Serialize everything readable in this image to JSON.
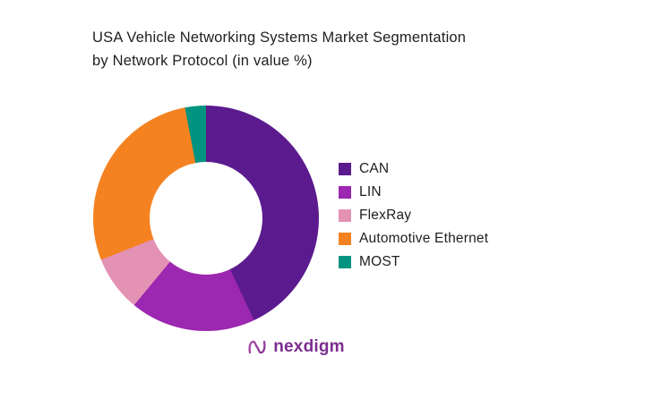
{
  "title": {
    "line1": "USA Vehicle Networking Systems Market Segmentation",
    "line2": "by Network Protocol (in value %)"
  },
  "logo": {
    "text": "nexdigm",
    "icon": "nexdigm-wave-icon",
    "color": "#7b2d8e"
  },
  "chart_data": {
    "type": "pie",
    "subtype": "donut",
    "title": "USA Vehicle Networking Systems Market Segmentation by Network Protocol (in value %)",
    "categories": [
      "CAN",
      "LIN",
      "FlexRay",
      "Automotive Ethernet",
      "MOST"
    ],
    "values": [
      43,
      18,
      8,
      28,
      3
    ],
    "unit": "value %",
    "colors": [
      "#5b1b8e",
      "#9c27b0",
      "#e492b4",
      "#f58220",
      "#009480"
    ],
    "start_angle_deg": 0,
    "direction": "clockwise",
    "hole_ratio": 0.5,
    "legend_position": "right",
    "background": "#ffffff"
  }
}
